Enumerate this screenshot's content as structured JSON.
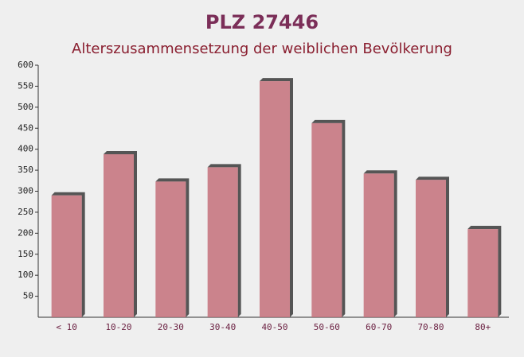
{
  "chart_data": {
    "type": "bar",
    "title": "PLZ 27446",
    "subtitle": "Alterszusammensetzung der weiblichen Bevölkerung",
    "categories": [
      "< 10",
      "10-20",
      "20-30",
      "30-40",
      "40-50",
      "50-60",
      "60-70",
      "70-80",
      "80+"
    ],
    "values": [
      290,
      388,
      323,
      357,
      562,
      462,
      342,
      327,
      210
    ],
    "color": "#c4707a",
    "ylim": [
      0,
      600
    ],
    "yticks": [
      50,
      100,
      150,
      200,
      250,
      300,
      350,
      400,
      450,
      500,
      550,
      600
    ],
    "grid": false
  }
}
